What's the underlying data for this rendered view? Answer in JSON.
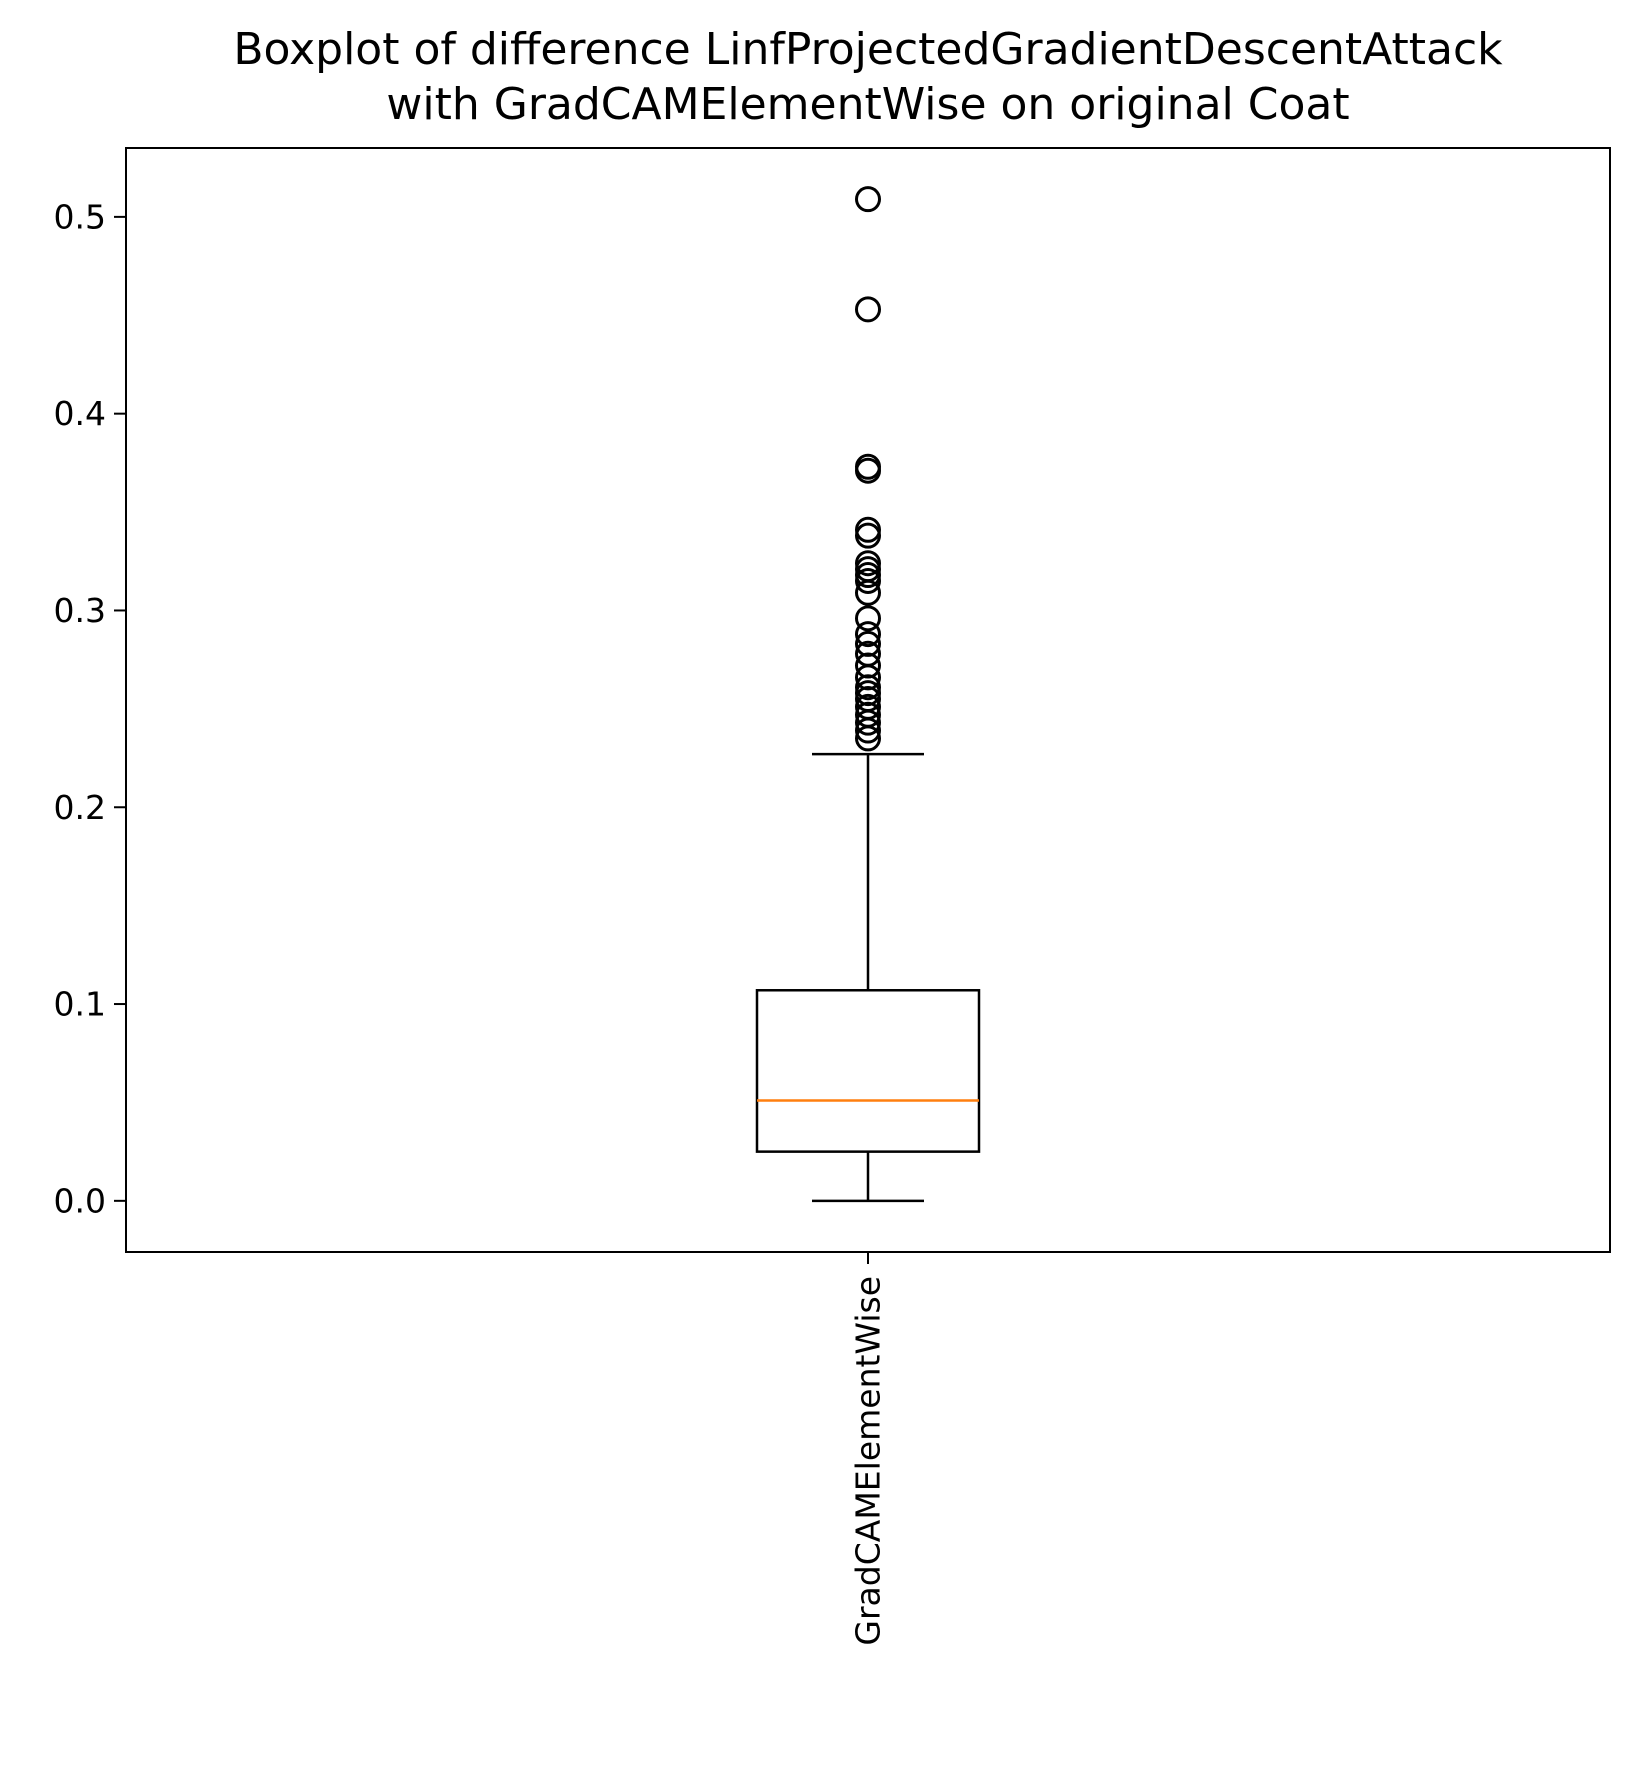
{
  "chart_data": {
    "type": "box",
    "title_lines": [
      "Boxplot of difference LinfProjectedGradientDescentAttack",
      "with GradCAMElementWise on original Coat"
    ],
    "xlabel": "",
    "ylabel": "",
    "categories": [
      "GradCAMElementWise"
    ],
    "ylim": [
      -0.026,
      0.535
    ],
    "yticks": [
      0.0,
      0.1,
      0.2,
      0.3,
      0.4,
      0.5
    ],
    "ytick_labels": [
      "0.0",
      "0.1",
      "0.2",
      "0.3",
      "0.4",
      "0.5"
    ],
    "grid": false,
    "series": [
      {
        "category": "GradCAMElementWise",
        "whisker_low": 0.0,
        "q1": 0.025,
        "median": 0.051,
        "q3": 0.107,
        "whisker_high": 0.227,
        "outliers": [
          0.509,
          0.453,
          0.373,
          0.371,
          0.341,
          0.338,
          0.324,
          0.321,
          0.318,
          0.315,
          0.309,
          0.296,
          0.288,
          0.283,
          0.278,
          0.272,
          0.266,
          0.261,
          0.258,
          0.255,
          0.251,
          0.247,
          0.243,
          0.239,
          0.235
        ]
      }
    ],
    "colors": {
      "box": "#000000",
      "median": "#ff7f0e",
      "outlier_edge": "#000000"
    }
  }
}
